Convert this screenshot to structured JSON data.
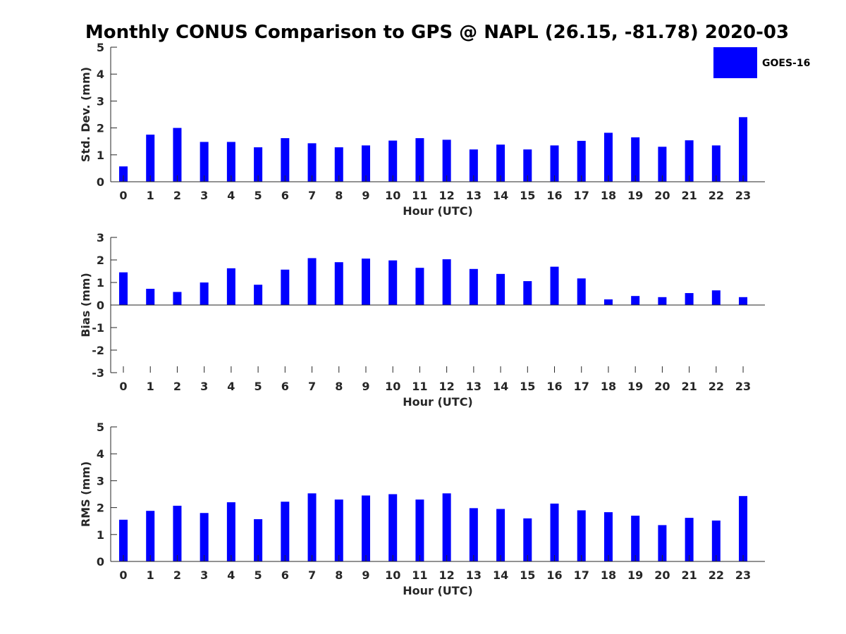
{
  "title": "Monthly CONUS Comparison to GPS @ NAPL (26.15, -81.78) 2020-03",
  "legend": {
    "entry": "GOES-16",
    "color": "#0000FF",
    "placement": "top-right"
  },
  "bar_color": "#0000FF",
  "chart_data": [
    {
      "type": "bar",
      "xlabel": "Hour (UTC)",
      "ylabel": "Std. Dev. (mm)",
      "ylim": [
        0,
        5
      ],
      "yticks": [
        0,
        1,
        2,
        3,
        4,
        5
      ],
      "categories": [
        "0",
        "1",
        "2",
        "3",
        "4",
        "5",
        "6",
        "7",
        "8",
        "9",
        "10",
        "11",
        "12",
        "13",
        "14",
        "15",
        "16",
        "17",
        "18",
        "19",
        "20",
        "21",
        "22",
        "23"
      ],
      "series": [
        {
          "name": "GOES-16",
          "values": [
            0.57,
            1.75,
            2.0,
            1.48,
            1.48,
            1.28,
            1.62,
            1.43,
            1.28,
            1.35,
            1.53,
            1.62,
            1.56,
            1.2,
            1.38,
            1.2,
            1.35,
            1.52,
            1.82,
            1.65,
            1.3,
            1.54,
            1.35,
            2.4
          ]
        }
      ],
      "grid": false
    },
    {
      "type": "bar",
      "xlabel": "Hour (UTC)",
      "ylabel": "Bias (mm)",
      "ylim": [
        -3,
        3
      ],
      "yticks": [
        -3,
        -2,
        -1,
        0,
        1,
        2,
        3
      ],
      "categories": [
        "0",
        "1",
        "2",
        "3",
        "4",
        "5",
        "6",
        "7",
        "8",
        "9",
        "10",
        "11",
        "12",
        "13",
        "14",
        "15",
        "16",
        "17",
        "18",
        "19",
        "20",
        "21",
        "22",
        "23"
      ],
      "series": [
        {
          "name": "GOES-16",
          "values": [
            1.45,
            0.72,
            0.58,
            1.0,
            1.63,
            0.9,
            1.57,
            2.08,
            1.9,
            2.06,
            1.98,
            1.65,
            2.03,
            1.6,
            1.38,
            1.06,
            1.7,
            1.18,
            0.25,
            0.4,
            0.35,
            0.53,
            0.65,
            0.35
          ]
        }
      ],
      "grid": false
    },
    {
      "type": "bar",
      "xlabel": "Hour (UTC)",
      "ylabel": "RMS (mm)",
      "ylim": [
        0,
        5
      ],
      "yticks": [
        0,
        1,
        2,
        3,
        4,
        5
      ],
      "categories": [
        "0",
        "1",
        "2",
        "3",
        "4",
        "5",
        "6",
        "7",
        "8",
        "9",
        "10",
        "11",
        "12",
        "13",
        "14",
        "15",
        "16",
        "17",
        "18",
        "19",
        "20",
        "21",
        "22",
        "23"
      ],
      "series": [
        {
          "name": "GOES-16",
          "values": [
            1.55,
            1.88,
            2.07,
            1.8,
            2.2,
            1.57,
            2.22,
            2.53,
            2.3,
            2.45,
            2.5,
            2.3,
            2.53,
            1.98,
            1.95,
            1.6,
            2.15,
            1.9,
            1.83,
            1.7,
            1.35,
            1.62,
            1.52,
            2.43
          ]
        }
      ],
      "grid": false
    }
  ]
}
